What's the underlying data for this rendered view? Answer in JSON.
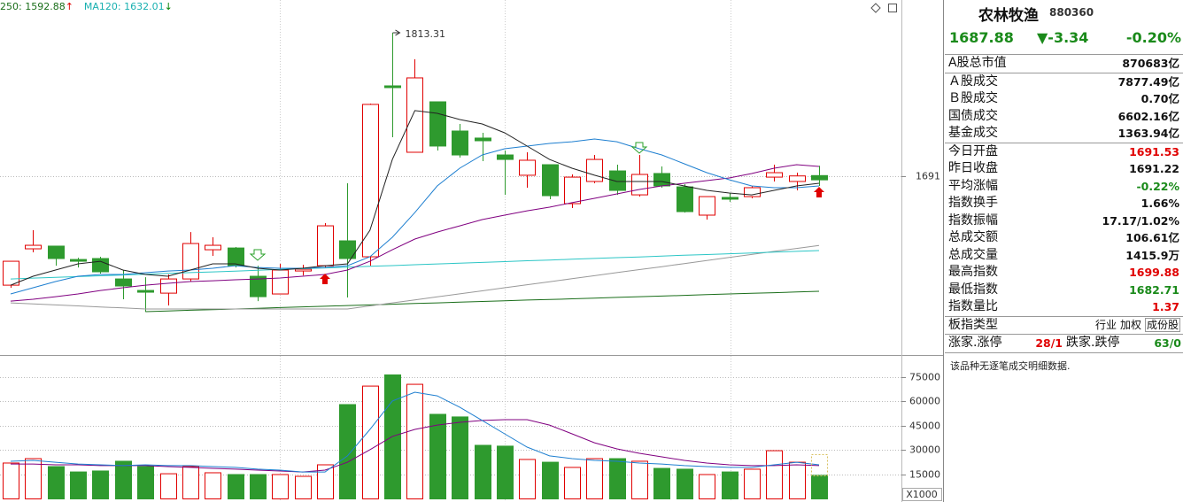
{
  "header": {
    "indicators": [
      {
        "text": "250: 1592.88",
        "arrow": "↑",
        "color": "#1a6e1a",
        "arrow_color": "#e00000"
      },
      {
        "text": "MA120: 1632.01",
        "arrow": "↓",
        "color": "#18b0b0",
        "arrow_color": "#008000"
      }
    ]
  },
  "chart_data": [
    {
      "type": "candlestick",
      "up_color": "#e00000",
      "down_color": "#2e9a2e",
      "open": [
        1598.1,
        1629.1,
        1631.4,
        1620.0,
        1620.8,
        1603.4,
        1593.6,
        1591.3,
        1603.4,
        1628.3,
        1629.8,
        1605.7,
        1590.6,
        1610.2,
        1614.7,
        1635.9,
        1622.3,
        1768.0,
        1711.4,
        1754.4,
        1729.5,
        1723.5,
        1709.1,
        1691.8,
        1700.8,
        1667.6,
        1686.5,
        1695.5,
        1675.1,
        1693.3,
        1681.9,
        1657.8,
        1672.9,
        1673.6,
        1690.2,
        1686.5,
        1691.53
      ],
      "high": [
        1618.5,
        1645.0,
        1631.4,
        1621.5,
        1622.3,
        1611.0,
        1604.9,
        1607.2,
        1643.4,
        1638.9,
        1630.6,
        1614.7,
        1616.3,
        1615.5,
        1651.0,
        1685.0,
        1752.9,
        1813.31,
        1790.7,
        1754.4,
        1735.5,
        1728.0,
        1712.9,
        1711.4,
        1700.8,
        1692.5,
        1709.1,
        1700.8,
        1709.1,
        1699.3,
        1684.2,
        1673.6,
        1676.7,
        1682.7,
        1700.8,
        1694.0,
        1699.88
      ],
      "low": [
        1595.9,
        1626.1,
        1614.7,
        1613.2,
        1608.0,
        1586.1,
        1575.5,
        1580.8,
        1601.2,
        1623.1,
        1613.2,
        1584.5,
        1590.6,
        1606.4,
        1613.2,
        1587.6,
        1614.7,
        1724.2,
        1711.4,
        1712.9,
        1706.9,
        1703.8,
        1675.1,
        1681.2,
        1671.4,
        1663.8,
        1685.0,
        1675.1,
        1673.6,
        1681.2,
        1660.0,
        1654.0,
        1669.1,
        1672.1,
        1686.5,
        1678.9,
        1682.71
      ],
      "close": [
        1618.5,
        1632.1,
        1620.8,
        1618.5,
        1609.5,
        1597.4,
        1592.1,
        1603.4,
        1633.6,
        1632.1,
        1614.7,
        1588.3,
        1611.0,
        1611.7,
        1648.7,
        1620.8,
        1752.2,
        1766.5,
        1774.8,
        1716.7,
        1709.1,
        1721.2,
        1705.3,
        1704.6,
        1674.4,
        1690.2,
        1705.3,
        1678.9,
        1692.5,
        1682.7,
        1660.8,
        1673.6,
        1671.4,
        1681.2,
        1694.0,
        1691.22,
        1687.88
      ],
      "lines": [
        {
          "color": "#1a6e1a",
          "values": [
            null,
            null,
            null,
            null,
            null,
            null,
            1575.5,
            1576.1,
            1576.7,
            1577.2,
            1577.8,
            1578.4,
            1579.0,
            1579.6,
            1580.1,
            1580.7,
            1581.3,
            1581.9,
            1582.5,
            1583.0,
            1583.6,
            1584.2,
            1584.8,
            1585.4,
            1585.9,
            1586.5,
            1587.1,
            1587.7,
            1588.3,
            1588.8,
            1589.4,
            1590.0,
            1590.6,
            1591.2,
            1591.7,
            1592.3,
            1592.88
          ]
        },
        {
          "color": "#999999",
          "values": [
            1583.0,
            1582.1,
            1581.3,
            1580.4,
            1579.5,
            1578.7,
            1577.8,
            1577.8,
            1577.8,
            1577.8,
            1577.8,
            1577.8,
            1577.8,
            1577.8,
            1577.8,
            1577.8,
            1580.4,
            1583.0,
            1585.5,
            1588.1,
            1590.7,
            1593.3,
            1595.9,
            1598.5,
            1601.0,
            1603.6,
            1606.2,
            1608.8,
            1611.4,
            1613.9,
            1616.5,
            1619.1,
            1621.7,
            1624.3,
            1626.9,
            1629.4,
            1632.01
          ]
        },
        {
          "color": "#2cc6c6",
          "values": [
            1603.4,
            1604.1,
            1604.7,
            1605.4,
            1606.1,
            1606.8,
            1607.4,
            1608.1,
            1608.8,
            1609.4,
            1610.1,
            1610.8,
            1611.5,
            1612.1,
            1612.8,
            1613.5,
            1614.2,
            1614.8,
            1615.5,
            1616.2,
            1616.8,
            1617.5,
            1618.2,
            1618.9,
            1619.5,
            1620.2,
            1620.9,
            1621.6,
            1622.2,
            1622.9,
            1623.6,
            1624.2,
            1624.9,
            1625.6,
            1626.3,
            1626.9,
            1627.6
          ]
        },
        {
          "color": "#800080",
          "values": [
            1584.5,
            1586.1,
            1588.3,
            1590.6,
            1593.6,
            1595.9,
            1598.1,
            1599.7,
            1601.2,
            1601.9,
            1602.7,
            1603.4,
            1604.2,
            1605.7,
            1607.2,
            1611.0,
            1618.5,
            1628.3,
            1637.4,
            1643.4,
            1648.7,
            1654.0,
            1657.8,
            1661.5,
            1664.6,
            1668.4,
            1672.1,
            1675.9,
            1679.7,
            1682.7,
            1685.0,
            1687.2,
            1689.5,
            1693.3,
            1697.8,
            1700.8,
            1699.3
          ]
        },
        {
          "color": "#1e7fd0",
          "values": [
            1590.6,
            1595.9,
            1601.2,
            1605.7,
            1607.2,
            1607.2,
            1608.7,
            1610.2,
            1611.0,
            1612.5,
            1614.7,
            1613.2,
            1612.5,
            1612.5,
            1613.2,
            1614.7,
            1622.3,
            1638.9,
            1660.0,
            1682.7,
            1697.8,
            1709.1,
            1714.4,
            1716.7,
            1718.9,
            1720.4,
            1722.7,
            1720.4,
            1714.4,
            1709.1,
            1701.6,
            1694.0,
            1688.0,
            1682.7,
            1681.2,
            1681.2,
            1682.7
          ]
        },
        {
          "color": "#222222",
          "values": [
            1598.1,
            1605.7,
            1611.0,
            1616.3,
            1618.5,
            1611.0,
            1607.2,
            1605.7,
            1611.0,
            1616.3,
            1616.3,
            1612.5,
            1611.0,
            1612.5,
            1614.7,
            1616.3,
            1645.0,
            1705.3,
            1746.9,
            1744.6,
            1739.3,
            1735.5,
            1728.0,
            1716.7,
            1705.3,
            1697.8,
            1691.8,
            1686.5,
            1686.5,
            1686.5,
            1682.7,
            1678.9,
            1676.7,
            1675.1,
            1678.9,
            1682.7,
            1685.0
          ]
        }
      ],
      "ylim": [
        1539.3,
        1841.2
      ],
      "yticks": [
        1691
      ],
      "grid": true
    },
    {
      "type": "bar",
      "unit_label": "X1000",
      "values": [
        22100,
        24800,
        19900,
        16600,
        17200,
        23200,
        19900,
        15500,
        19900,
        16100,
        15000,
        15000,
        15000,
        13900,
        21000,
        58100,
        69500,
        76400,
        70600,
        52100,
        50500,
        33000,
        32500,
        24300,
        22600,
        19400,
        24800,
        24800,
        23200,
        18800,
        18300,
        15000,
        16600,
        18300,
        29700,
        22600,
        14500
      ],
      "lines": [
        {
          "color": "#800080",
          "values": [
            21500,
            21500,
            21000,
            21000,
            20500,
            20500,
            20500,
            19900,
            19400,
            18800,
            18300,
            17700,
            17200,
            16600,
            17700,
            22600,
            30300,
            38500,
            42800,
            45500,
            47200,
            48300,
            48800,
            48800,
            45500,
            40100,
            34600,
            30800,
            28100,
            25900,
            23700,
            22100,
            21000,
            20500,
            20500,
            21000,
            20500
          ]
        },
        {
          "color": "#1e7fd0",
          "values": [
            23200,
            23700,
            22600,
            21500,
            21000,
            20500,
            21000,
            20500,
            20500,
            19900,
            19400,
            18300,
            17700,
            16600,
            16600,
            26500,
            42800,
            60300,
            65700,
            63500,
            56500,
            48300,
            40100,
            31900,
            26500,
            24800,
            23700,
            23200,
            22100,
            21500,
            20500,
            19900,
            19400,
            19400,
            21000,
            22600,
            21000
          ]
        }
      ],
      "ylim": [
        0,
        87545
      ],
      "yticks": [
        15000,
        30000,
        45000,
        60000,
        75000
      ],
      "grid": true
    }
  ],
  "panel": {
    "name": "农林牧渔",
    "code": "880360",
    "quote": {
      "price": "1687.88",
      "change": "▼-3.34",
      "pct": "-0.20%",
      "color": "#1a8a1a"
    },
    "groups": [
      [
        {
          "label": "A股总市值",
          "value": "870683亿"
        }
      ],
      [
        {
          "label": "Ａ股成交",
          "value": "7877.49亿"
        },
        {
          "label": "Ｂ股成交",
          "value": "0.70亿"
        },
        {
          "label": "国债成交",
          "value": "6602.16亿"
        },
        {
          "label": "基金成交",
          "value": "1363.94亿"
        }
      ],
      [
        {
          "label": "今日开盘",
          "value": "1691.53",
          "color": "#e00000"
        },
        {
          "label": "昨日收盘",
          "value": "1691.22"
        },
        {
          "label": "平均涨幅",
          "value": "-0.22%",
          "color": "#1a8a1a"
        },
        {
          "label": "指数换手",
          "value": "1.66%"
        },
        {
          "label": "指数振幅",
          "value": "17.17/1.02%"
        },
        {
          "label": "总成交额",
          "value": "106.61亿"
        },
        {
          "label": "总成交量",
          "value": "1415.9万"
        },
        {
          "label": "最高指数",
          "value": "1699.88",
          "color": "#e00000"
        },
        {
          "label": "最低指数",
          "value": "1682.71",
          "color": "#1a8a1a"
        },
        {
          "label": "指数量比",
          "value": "1.37",
          "color": "#e00000"
        }
      ]
    ],
    "type_row": {
      "label": "板指类型",
      "options": [
        "行业",
        "加权",
        "成份股"
      ]
    },
    "breadth": {
      "up_label": "涨家.涨停",
      "up": "28/1",
      "up_color": "#e00000",
      "down_label": "跌家.跌停",
      "down": "63/0",
      "down_color": "#1a8a1a"
    },
    "note": "该品种无逐笔成交明细数据."
  }
}
